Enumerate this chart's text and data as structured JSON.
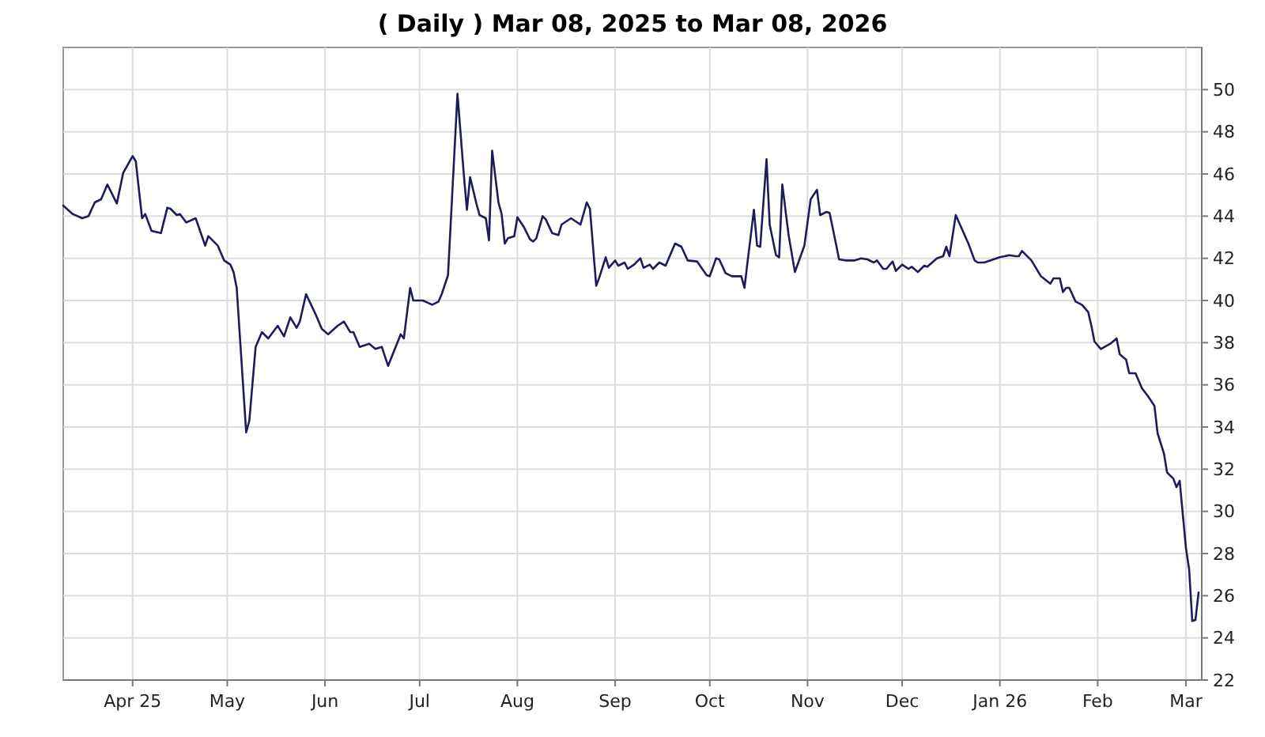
{
  "chart_data": {
    "type": "line",
    "title": "( Daily ) Mar 08, 2025 to Mar 08, 2026",
    "xlim": [
      "2025-03-10",
      "2026-03-06"
    ],
    "xticks": [
      {
        "value": "2025-04-01",
        "label": "Apr 25"
      },
      {
        "value": "2025-05-01",
        "label": "May"
      },
      {
        "value": "2025-06-01",
        "label": "Jun"
      },
      {
        "value": "2025-07-01",
        "label": "Jul"
      },
      {
        "value": "2025-08-01",
        "label": "Aug"
      },
      {
        "value": "2025-09-01",
        "label": "Sep"
      },
      {
        "value": "2025-10-01",
        "label": "Oct"
      },
      {
        "value": "2025-11-01",
        "label": "Nov"
      },
      {
        "value": "2025-12-01",
        "label": "Dec"
      },
      {
        "value": "2026-01-01",
        "label": "Jan 26"
      },
      {
        "value": "2026-02-01",
        "label": "Feb"
      },
      {
        "value": "2026-03-01",
        "label": "Mar"
      }
    ],
    "ylim": [
      22,
      52
    ],
    "yticks": [
      22,
      24,
      26,
      28,
      30,
      32,
      34,
      36,
      38,
      40,
      42,
      44,
      46,
      48,
      50
    ],
    "grid": true,
    "marker": "none",
    "line_style": "solid",
    "series": [
      {
        "color": "#1c1c5c",
        "x": [
          "2025-03-10",
          "2025-03-13",
          "2025-03-16",
          "2025-03-18",
          "2025-03-20",
          "2025-03-22",
          "2025-03-24",
          "2025-03-27",
          "2025-03-29",
          "2025-04-01",
          "2025-04-02",
          "2025-04-04",
          "2025-04-05",
          "2025-04-07",
          "2025-04-10",
          "2025-04-12",
          "2025-04-13",
          "2025-04-15",
          "2025-04-16",
          "2025-04-18",
          "2025-04-21",
          "2025-04-24",
          "2025-04-25",
          "2025-04-28",
          "2025-04-30",
          "2025-05-02",
          "2025-05-03",
          "2025-05-04",
          "2025-05-07",
          "2025-05-08",
          "2025-05-10",
          "2025-05-12",
          "2025-05-14",
          "2025-05-17",
          "2025-05-19",
          "2025-05-21",
          "2025-05-23",
          "2025-05-24",
          "2025-05-26",
          "2025-05-29",
          "2025-05-31",
          "2025-06-02",
          "2025-06-05",
          "2025-06-07",
          "2025-06-09",
          "2025-06-10",
          "2025-06-12",
          "2025-06-15",
          "2025-06-17",
          "2025-06-19",
          "2025-06-21",
          "2025-06-25",
          "2025-06-26",
          "2025-06-28",
          "2025-06-29",
          "2025-07-02",
          "2025-07-05",
          "2025-07-07",
          "2025-07-08",
          "2025-07-10",
          "2025-07-13",
          "2025-07-15",
          "2025-07-16",
          "2025-07-17",
          "2025-07-19",
          "2025-07-20",
          "2025-07-22",
          "2025-07-23",
          "2025-07-24",
          "2025-07-26",
          "2025-07-27",
          "2025-07-28",
          "2025-07-29",
          "2025-07-31",
          "2025-08-01",
          "2025-08-03",
          "2025-08-05",
          "2025-08-06",
          "2025-08-07",
          "2025-08-09",
          "2025-08-10",
          "2025-08-12",
          "2025-08-14",
          "2025-08-15",
          "2025-08-18",
          "2025-08-21",
          "2025-08-23",
          "2025-08-24",
          "2025-08-26",
          "2025-08-27",
          "2025-08-29",
          "2025-08-30",
          "2025-09-01",
          "2025-09-02",
          "2025-09-04",
          "2025-09-05",
          "2025-09-07",
          "2025-09-09",
          "2025-09-10",
          "2025-09-12",
          "2025-09-13",
          "2025-09-15",
          "2025-09-17",
          "2025-09-20",
          "2025-09-22",
          "2025-09-24",
          "2025-09-27",
          "2025-09-30",
          "2025-10-01",
          "2025-10-03",
          "2025-10-04",
          "2025-10-06",
          "2025-10-08",
          "2025-10-11",
          "2025-10-12",
          "2025-10-13",
          "2025-10-15",
          "2025-10-16",
          "2025-10-17",
          "2025-10-19",
          "2025-10-20",
          "2025-10-22",
          "2025-10-23",
          "2025-10-24",
          "2025-10-26",
          "2025-10-28",
          "2025-10-31",
          "2025-11-02",
          "2025-11-04",
          "2025-11-05",
          "2025-11-07",
          "2025-11-08",
          "2025-11-10",
          "2025-11-11",
          "2025-11-13",
          "2025-11-16",
          "2025-11-18",
          "2025-11-20",
          "2025-11-22",
          "2025-11-23",
          "2025-11-25",
          "2025-11-26",
          "2025-11-28",
          "2025-11-29",
          "2025-12-01",
          "2025-12-03",
          "2025-12-04",
          "2025-12-06",
          "2025-12-08",
          "2025-12-09",
          "2025-12-12",
          "2025-12-14",
          "2025-12-15",
          "2025-12-16",
          "2025-12-18",
          "2025-12-22",
          "2025-12-24",
          "2025-12-25",
          "2025-12-27",
          "2026-01-01",
          "2026-01-04",
          "2026-01-06",
          "2026-01-07",
          "2026-01-08",
          "2026-01-10",
          "2026-01-11",
          "2026-01-14",
          "2026-01-17",
          "2026-01-18",
          "2026-01-20",
          "2026-01-21",
          "2026-01-22",
          "2026-01-23",
          "2026-01-25",
          "2026-01-27",
          "2026-01-29",
          "2026-01-30",
          "2026-01-31",
          "2026-02-02",
          "2026-02-05",
          "2026-02-07",
          "2026-02-08",
          "2026-02-10",
          "2026-02-11",
          "2026-02-13",
          "2026-02-15",
          "2026-02-17",
          "2026-02-19",
          "2026-02-20",
          "2026-02-22",
          "2026-02-23",
          "2026-02-25",
          "2026-02-26",
          "2026-02-27",
          "2026-03-01",
          "2026-03-02",
          "2026-03-03",
          "2026-03-04",
          "2026-03-05"
        ],
        "values": [
          44.5,
          44.1,
          43.9,
          44.0,
          44.65,
          44.8,
          45.5,
          44.6,
          46.05,
          46.85,
          46.6,
          43.9,
          44.1,
          43.3,
          43.2,
          44.4,
          44.35,
          44.05,
          44.1,
          43.7,
          43.9,
          42.6,
          43.05,
          42.6,
          41.9,
          41.7,
          41.35,
          40.6,
          33.75,
          34.3,
          37.8,
          38.5,
          38.2,
          38.8,
          38.3,
          39.2,
          38.7,
          39.0,
          40.3,
          39.35,
          38.65,
          38.4,
          38.8,
          39.0,
          38.5,
          38.5,
          37.8,
          37.95,
          37.7,
          37.8,
          36.9,
          38.4,
          38.2,
          40.6,
          40.0,
          40.0,
          39.8,
          39.95,
          40.3,
          41.2,
          49.8,
          46.0,
          44.3,
          45.85,
          44.6,
          44.05,
          43.9,
          42.85,
          47.1,
          44.65,
          44.1,
          42.7,
          42.95,
          43.05,
          43.95,
          43.5,
          42.9,
          42.8,
          42.95,
          44.0,
          43.85,
          43.2,
          43.1,
          43.6,
          43.9,
          43.6,
          44.65,
          44.35,
          40.7,
          41.1,
          42.05,
          41.55,
          41.9,
          41.65,
          41.8,
          41.5,
          41.7,
          42.0,
          41.55,
          41.7,
          41.5,
          41.8,
          41.65,
          42.7,
          42.55,
          41.9,
          41.85,
          41.2,
          41.15,
          42.0,
          41.95,
          41.3,
          41.15,
          41.15,
          40.6,
          41.85,
          44.3,
          42.6,
          42.55,
          46.7,
          43.6,
          42.15,
          42.05,
          45.5,
          43.1,
          41.35,
          42.6,
          44.8,
          45.25,
          44.05,
          44.2,
          44.15,
          42.7,
          41.95,
          41.9,
          41.9,
          42.0,
          41.95,
          41.8,
          41.9,
          41.5,
          41.5,
          41.85,
          41.4,
          41.7,
          41.5,
          41.6,
          41.35,
          41.65,
          41.6,
          42.0,
          42.1,
          42.55,
          42.1,
          44.05,
          42.7,
          41.9,
          41.8,
          41.8,
          42.05,
          42.15,
          42.1,
          42.1,
          42.35,
          42.05,
          41.9,
          41.15,
          40.8,
          41.05,
          41.05,
          40.4,
          40.6,
          40.6,
          39.95,
          39.8,
          39.45,
          38.8,
          38.05,
          37.7,
          37.95,
          38.2,
          37.45,
          37.2,
          36.55,
          36.55,
          35.85,
          35.45,
          35.0,
          33.7,
          32.75,
          31.85,
          31.55,
          31.15,
          31.45,
          28.25,
          27.25,
          24.8,
          24.85,
          26.15
        ]
      }
    ]
  }
}
